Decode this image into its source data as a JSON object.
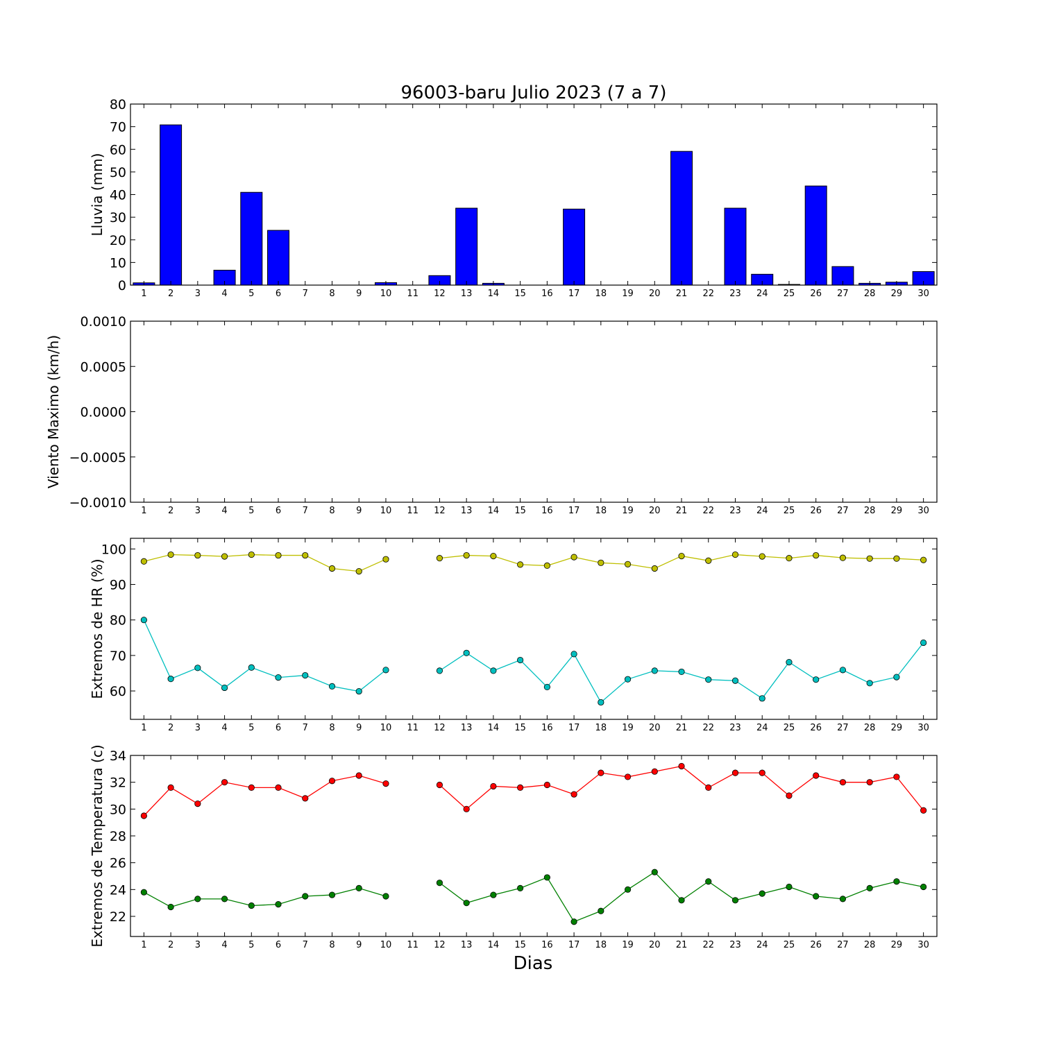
{
  "figure": {
    "title": "96003-baru Julio 2023  (7 a 7)",
    "xlabel": "Dias"
  },
  "chart_data": [
    {
      "type": "bar",
      "ylabel": "Lluvia (mm)",
      "ylim": [
        0,
        80
      ],
      "yticks": [
        "0",
        "10",
        "20",
        "30",
        "40",
        "50",
        "60",
        "70",
        "80"
      ],
      "xlim": [
        0.5,
        30.5
      ],
      "x": [
        1,
        2,
        3,
        4,
        5,
        6,
        7,
        8,
        9,
        10,
        11,
        12,
        13,
        14,
        15,
        16,
        17,
        18,
        19,
        20,
        21,
        22,
        23,
        24,
        25,
        26,
        27,
        28,
        29,
        30
      ],
      "xticks": [
        "1",
        "2",
        "3",
        "4",
        "5",
        "6",
        "7",
        "8",
        "9",
        "10",
        "11",
        "12",
        "13",
        "14",
        "15",
        "16",
        "17",
        "18",
        "19",
        "20",
        "21",
        "22",
        "23",
        "24",
        "25",
        "26",
        "27",
        "28",
        "29",
        "30"
      ],
      "values": [
        1.0,
        70.8,
        0,
        6.6,
        41.0,
        24.2,
        0,
        0,
        0,
        1.1,
        0,
        4.2,
        34.0,
        0.8,
        0,
        0,
        33.6,
        0,
        0,
        0,
        59.1,
        0,
        34.0,
        4.8,
        0.3,
        43.8,
        8.2,
        0.8,
        1.3,
        6.0
      ],
      "color": "#0000ff",
      "grid": false
    },
    {
      "type": "line",
      "ylabel": "Viento Maximo (km/h)",
      "ylim": [
        -0.001,
        0.001
      ],
      "yticks": [
        "0.0010",
        "0.0005",
        "0.0000",
        "−0.0005",
        "−0.0010"
      ],
      "ytick_values": [
        0.001,
        0.0005,
        0,
        -0.0005,
        -0.001
      ],
      "xlim": [
        0.5,
        30.5
      ],
      "xticks": [
        "1",
        "2",
        "3",
        "4",
        "5",
        "6",
        "7",
        "8",
        "9",
        "10",
        "11",
        "12",
        "13",
        "14",
        "15",
        "16",
        "17",
        "18",
        "19",
        "20",
        "21",
        "22",
        "23",
        "24",
        "25",
        "26",
        "27",
        "28",
        "29",
        "30"
      ],
      "series": [],
      "grid": false
    },
    {
      "type": "line",
      "ylabel": "Extremos de HR (%)",
      "ylim": [
        52,
        103
      ],
      "yticks": [
        "60",
        "70",
        "80",
        "90",
        "100"
      ],
      "ytick_values": [
        60,
        70,
        80,
        90,
        100
      ],
      "xlim": [
        0.5,
        30.5
      ],
      "x": [
        1,
        2,
        3,
        4,
        5,
        6,
        7,
        8,
        9,
        10,
        11,
        12,
        13,
        14,
        15,
        16,
        17,
        18,
        19,
        20,
        21,
        22,
        23,
        24,
        25,
        26,
        27,
        28,
        29,
        30
      ],
      "xticks": [
        "1",
        "2",
        "3",
        "4",
        "5",
        "6",
        "7",
        "8",
        "9",
        "10",
        "11",
        "12",
        "13",
        "14",
        "15",
        "16",
        "17",
        "18",
        "19",
        "20",
        "21",
        "22",
        "23",
        "24",
        "25",
        "26",
        "27",
        "28",
        "29",
        "30"
      ],
      "series": [
        {
          "color": "#bfbf00",
          "values": [
            96.5,
            98.4,
            98.2,
            97.9,
            98.4,
            98.2,
            98.2,
            94.5,
            93.7,
            97.1,
            null,
            97.4,
            98.2,
            98.0,
            95.6,
            95.3,
            97.7,
            96.1,
            95.7,
            94.5,
            98.0,
            96.7,
            98.4,
            97.9,
            97.4,
            98.2,
            97.5,
            97.3,
            97.3,
            96.9
          ]
        },
        {
          "color": "#00bfbf",
          "values": [
            80.0,
            63.4,
            66.5,
            60.9,
            66.6,
            63.8,
            64.4,
            61.3,
            59.9,
            65.9,
            null,
            65.7,
            70.7,
            65.7,
            68.7,
            61.1,
            70.4,
            56.8,
            63.3,
            65.7,
            65.4,
            63.2,
            62.9,
            57.9,
            68.1,
            63.2,
            65.9,
            62.2,
            63.9,
            73.6
          ]
        }
      ],
      "grid": false
    },
    {
      "type": "line",
      "ylabel": "Extremos de Temperatura (c)",
      "ylim": [
        20.5,
        34
      ],
      "yticks": [
        "22",
        "24",
        "26",
        "28",
        "30",
        "32",
        "34"
      ],
      "ytick_values": [
        22,
        24,
        26,
        28,
        30,
        32,
        34
      ],
      "xlim": [
        0.5,
        30.5
      ],
      "x": [
        1,
        2,
        3,
        4,
        5,
        6,
        7,
        8,
        9,
        10,
        11,
        12,
        13,
        14,
        15,
        16,
        17,
        18,
        19,
        20,
        21,
        22,
        23,
        24,
        25,
        26,
        27,
        28,
        29,
        30
      ],
      "xticks": [
        "1",
        "2",
        "3",
        "4",
        "5",
        "6",
        "7",
        "8",
        "9",
        "10",
        "11",
        "12",
        "13",
        "14",
        "15",
        "16",
        "17",
        "18",
        "19",
        "20",
        "21",
        "22",
        "23",
        "24",
        "25",
        "26",
        "27",
        "28",
        "29",
        "30"
      ],
      "series": [
        {
          "color": "#ff0000",
          "values": [
            29.5,
            31.6,
            30.4,
            32.0,
            31.6,
            31.6,
            30.8,
            32.1,
            32.5,
            31.9,
            null,
            31.8,
            30.0,
            31.7,
            31.6,
            31.8,
            31.1,
            32.7,
            32.4,
            32.8,
            33.2,
            31.6,
            32.7,
            32.7,
            31.0,
            32.5,
            32.0,
            32.0,
            32.4,
            29.9
          ]
        },
        {
          "color": "#008000",
          "values": [
            23.8,
            22.7,
            23.3,
            23.3,
            22.8,
            22.9,
            23.5,
            23.6,
            24.1,
            23.5,
            null,
            24.5,
            23.0,
            23.6,
            24.1,
            24.9,
            21.6,
            22.4,
            24.0,
            25.3,
            23.2,
            24.6,
            23.2,
            23.7,
            24.2,
            23.5,
            23.3,
            24.1,
            24.6,
            24.2
          ]
        }
      ],
      "grid": false
    }
  ]
}
